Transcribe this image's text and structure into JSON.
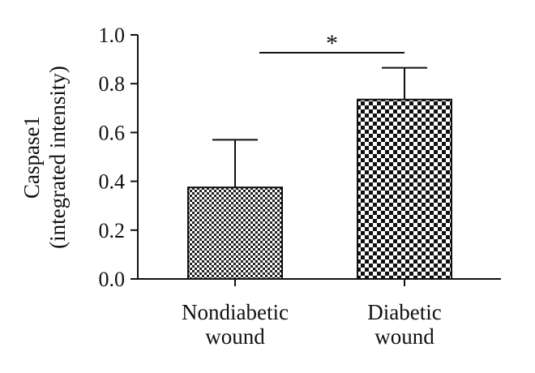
{
  "chart_data": {
    "type": "bar",
    "categories": [
      [
        "Nondiabetic",
        "wound"
      ],
      [
        "Diabetic",
        "wound"
      ]
    ],
    "values": [
      0.375,
      0.735
    ],
    "error_upper": [
      0.57,
      0.865
    ],
    "ylabel": [
      "Caspase1",
      "(integrated intensity)"
    ],
    "ylim": [
      0,
      1.0
    ],
    "yticks": [
      "0.0",
      "0.2",
      "0.4",
      "0.6",
      "0.8",
      "1.0"
    ],
    "ytick_values": [
      0,
      0.2,
      0.4,
      0.6,
      0.8,
      1.0
    ],
    "patterns": [
      "fine-checker",
      "coarse-checker"
    ],
    "significance": {
      "text": "*",
      "between": [
        0,
        1
      ]
    },
    "grid": false,
    "legend": "none",
    "colors": {
      "ink": "#111111",
      "fill": "#ffffff"
    }
  }
}
